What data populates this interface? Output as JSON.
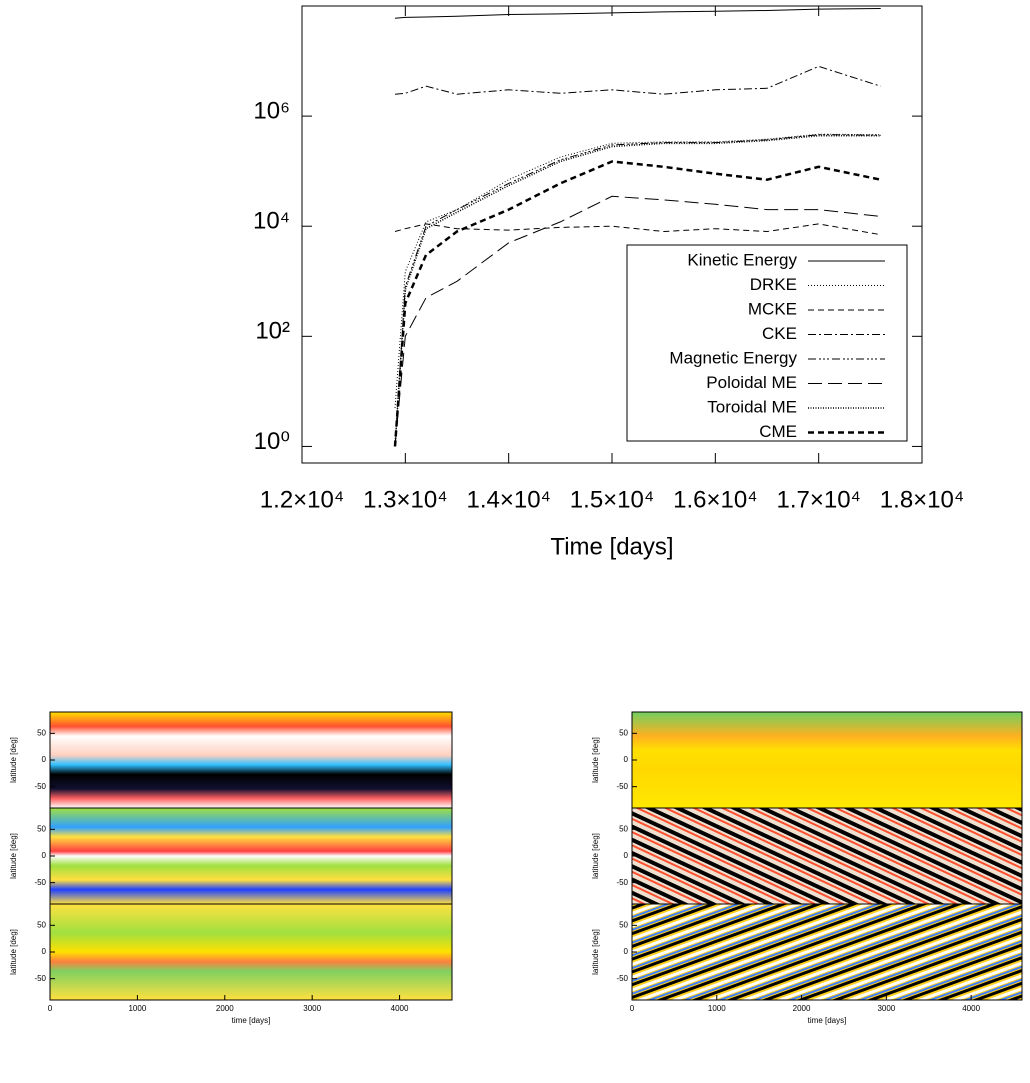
{
  "chart_data": [
    {
      "type": "line",
      "xlabel": "Time [days]",
      "xlim": [
        12000,
        18000
      ],
      "xticks": [
        {
          "value": 12000,
          "label": "1.2×10⁴"
        },
        {
          "value": 13000,
          "label": "1.3×10⁴"
        },
        {
          "value": 14000,
          "label": "1.4×10⁴"
        },
        {
          "value": 15000,
          "label": "1.5×10⁴"
        },
        {
          "value": 16000,
          "label": "1.6×10⁴"
        },
        {
          "value": 17000,
          "label": "1.7×10⁴"
        },
        {
          "value": 18000,
          "label": "1.8×10⁴"
        }
      ],
      "ylim": [
        0.5,
        100000000
      ],
      "yticks": [
        {
          "value": 1,
          "label": "10⁰"
        },
        {
          "value": 100,
          "label": "10²"
        },
        {
          "value": 10000,
          "label": "10⁴"
        },
        {
          "value": 1000000,
          "label": "10⁶"
        }
      ],
      "log_y": true,
      "legend": "lower right",
      "x": [
        12900,
        13000,
        13200,
        13500,
        14000,
        14500,
        15000,
        15500,
        16000,
        16500,
        17000,
        17600
      ],
      "series": [
        {
          "name": "Kinetic Energy",
          "color": "#000000",
          "dash": "",
          "line_width": 1,
          "values": [
            60000000,
            62000000,
            63000000,
            65000000,
            70000000,
            72000000,
            75000000,
            78000000,
            80000000,
            83000000,
            88000000,
            90000000
          ]
        },
        {
          "name": "DRKE",
          "color": "#000000",
          "dash": "1,2",
          "line_width": 1,
          "values": [
            5,
            1500,
            12000,
            20000,
            70000,
            180000,
            320000,
            340000,
            340000,
            380000,
            470000,
            460000
          ]
        },
        {
          "name": "MCKE",
          "color": "#000000",
          "dash": "6,4",
          "line_width": 1,
          "values": [
            8000,
            9000,
            11000,
            9000,
            8500,
            9500,
            10000,
            8000,
            9000,
            8000,
            11000,
            7000
          ]
        },
        {
          "name": "CKE",
          "color": "#000000",
          "dash": "8,3,2,3",
          "line_width": 1,
          "values": [
            2500000,
            2600000,
            3500000,
            2500000,
            3000000,
            2600000,
            3000000,
            2500000,
            3000000,
            3200000,
            8000000,
            3500000
          ]
        },
        {
          "name": "Magnetic Energy",
          "color": "#000000",
          "dash": "8,3,2,2,2,2,2,3",
          "line_width": 1,
          "values": [
            1,
            800,
            10000,
            20000,
            60000,
            160000,
            300000,
            330000,
            330000,
            370000,
            460000,
            450000
          ]
        },
        {
          "name": "Poloidal ME",
          "color": "#000000",
          "dash": "14,6",
          "line_width": 1,
          "values": [
            1,
            100,
            500,
            1000,
            5000,
            12000,
            35000,
            30000,
            25000,
            20000,
            20000,
            15000
          ]
        },
        {
          "name": "Toroidal ME",
          "color": "#000000",
          "dash": "1,1.5",
          "line_width": 1.6,
          "values": [
            1,
            700,
            9000,
            18000,
            55000,
            150000,
            280000,
            320000,
            320000,
            360000,
            440000,
            440000
          ]
        },
        {
          "name": "CME",
          "color": "#000000",
          "dash": "6,4",
          "line_width": 2.5,
          "values": [
            1,
            400,
            3000,
            8000,
            20000,
            60000,
            150000,
            120000,
            90000,
            70000,
            120000,
            70000
          ]
        }
      ]
    },
    {
      "type": "heatmap",
      "xlabel": "time [days]",
      "ylabel": "latitude [deg]",
      "xlim": [
        0,
        4600
      ],
      "xticks": [
        0,
        1000,
        2000,
        3000,
        4000
      ],
      "ylim": [
        -90,
        90
      ],
      "yticks": [
        -50,
        0,
        50
      ],
      "panels": 3
    },
    {
      "type": "heatmap",
      "xlabel": "time [days]",
      "ylabel": "latitude [deg]",
      "xlim": [
        0,
        4600
      ],
      "xticks": [
        0,
        1000,
        2000,
        3000,
        4000
      ],
      "ylim": [
        -90,
        90
      ],
      "yticks": [
        -50,
        0,
        50
      ],
      "panels": 3
    }
  ]
}
